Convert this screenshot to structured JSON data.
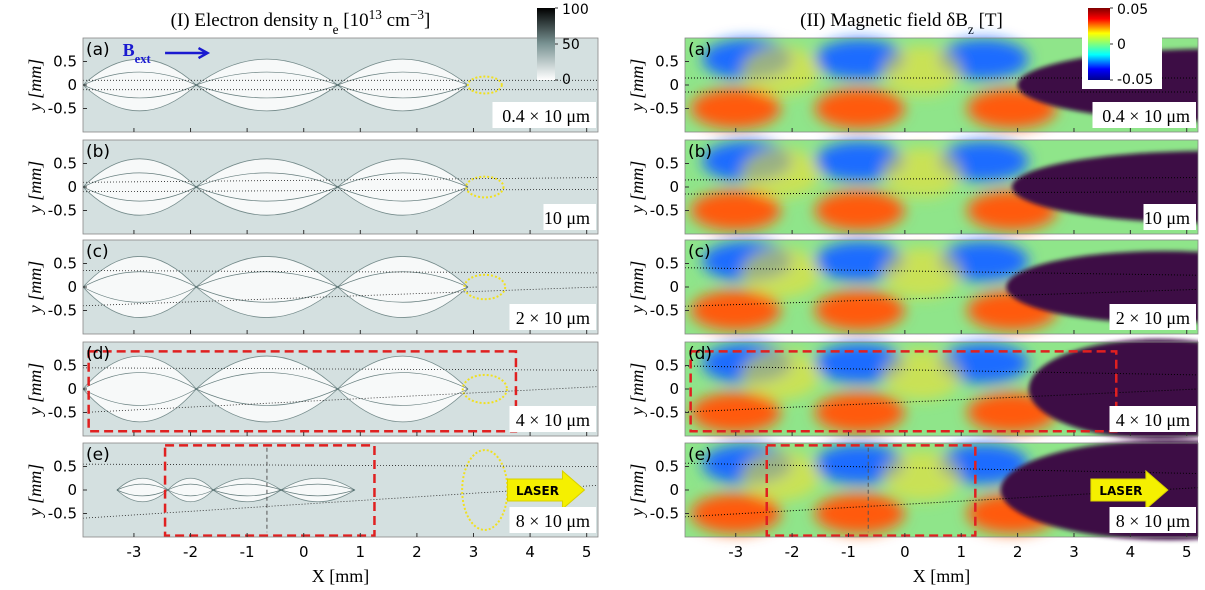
{
  "chart_data": [
    {
      "type": "heatmap",
      "title": [
        {
          "text": "(I) Electron density "
        },
        {
          "text": "n"
        },
        {
          "text": "e",
          "shift": "sub"
        },
        {
          "text": " [10"
        },
        {
          "text": "13",
          "shift": "super"
        },
        {
          "text": " cm"
        },
        {
          "text": "−3",
          "shift": "super"
        },
        {
          "text": "]"
        }
      ],
      "xlabel": "X [mm]",
      "ylabel": "y [mm]",
      "xlim": [
        -3.9,
        5.2
      ],
      "xticks": [
        -3,
        -2,
        -1,
        0,
        1,
        2,
        3,
        4,
        5
      ],
      "ylim": [
        -1,
        1
      ],
      "yticks": [
        -0.5,
        0,
        0.5
      ],
      "colormap": "gray",
      "clim": [
        0,
        100
      ],
      "cticks": [
        0,
        50,
        100
      ],
      "field_label": [
        {
          "text": "B"
        },
        {
          "text": "ext",
          "shift": "sub"
        }
      ],
      "laser_label": "LASER",
      "panels": [
        {
          "label": "(a)",
          "thickness": "0.4 × 10 μm"
        },
        {
          "label": "(b)",
          "thickness": "10 μm"
        },
        {
          "label": "(c)",
          "thickness": "2 × 10 μm"
        },
        {
          "label": "(d)",
          "thickness": "4 × 10 μm"
        },
        {
          "label": "(e)",
          "thickness": "8 × 10 μm"
        }
      ]
    },
    {
      "type": "heatmap",
      "title": [
        {
          "text": "(II) Magnetic field δ"
        },
        {
          "text": "B"
        },
        {
          "text": "z",
          "shift": "sub"
        },
        {
          "text": " [T]"
        }
      ],
      "xlabel": "X [mm]",
      "ylabel": "y [mm]",
      "xlim": [
        -3.9,
        5.2
      ],
      "xticks": [
        -3,
        -2,
        -1,
        0,
        1,
        2,
        3,
        4,
        5
      ],
      "ylim": [
        -1,
        1
      ],
      "yticks": [
        -0.5,
        0,
        0.5
      ],
      "colormap": "jet",
      "clim": [
        -0.05,
        0.05
      ],
      "cticks": [
        -0.05,
        0,
        0.05
      ],
      "laser_label": "LASER",
      "panels": [
        {
          "label": "(a)",
          "thickness": "0.4 × 10 μm"
        },
        {
          "label": "(b)",
          "thickness": "10 μm"
        },
        {
          "label": "(c)",
          "thickness": "2 × 10 μm"
        },
        {
          "label": "(d)",
          "thickness": "4 × 10 μm"
        },
        {
          "label": "(e)",
          "thickness": "8 × 10 μm"
        }
      ]
    }
  ]
}
